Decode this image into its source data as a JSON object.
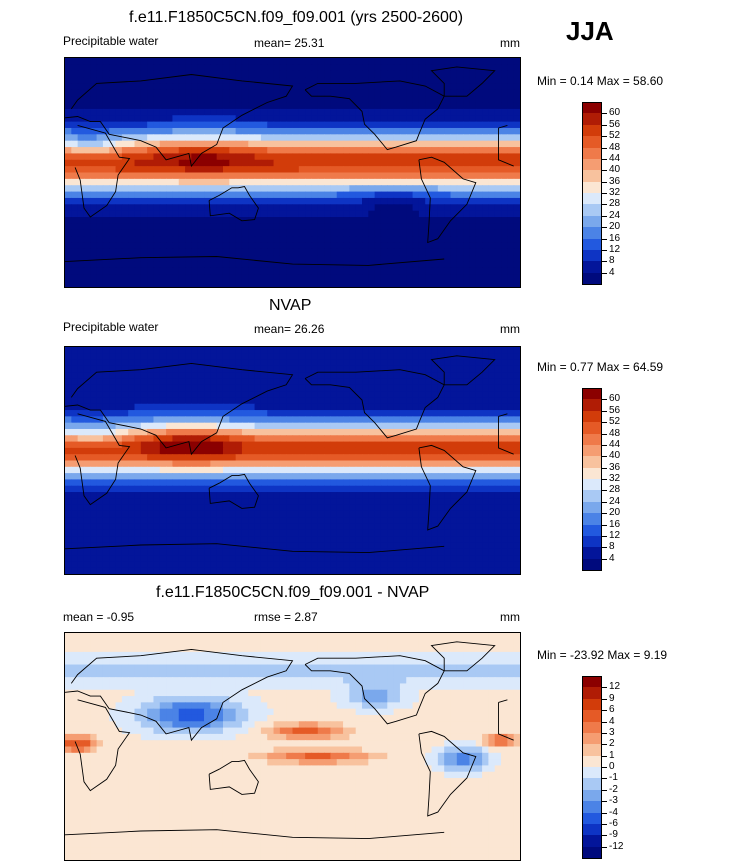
{
  "season": "JJA",
  "panels": [
    {
      "title": "f.e11.F1850C5CN.f09_f09.001 (yrs 2500-2600)",
      "left_label": "Precipitable water",
      "center_label": "mean=  25.31",
      "right_label": "mm",
      "minmax": "Min =   0.14 Max =  58.60",
      "levels": [
        "60",
        "56",
        "52",
        "48",
        "44",
        "40",
        "36",
        "32",
        "28",
        "24",
        "20",
        "16",
        "12",
        "8",
        "4"
      ],
      "colors": [
        "#8b0000",
        "#b01c05",
        "#d23c0a",
        "#e55a26",
        "#ef7a4a",
        "#f59d72",
        "#f8c29e",
        "#fbe6d3",
        "#dbe9fb",
        "#a9c9f4",
        "#7aa8ec",
        "#4b83e6",
        "#2259df",
        "#0e34c4",
        "#03159a",
        "#000a7d"
      ],
      "field": "model"
    },
    {
      "title": "NVAP",
      "left_label": "Precipitable water",
      "center_label": "mean=  26.26",
      "right_label": "mm",
      "minmax": "Min =   0.77 Max =  64.59",
      "levels": [
        "60",
        "56",
        "52",
        "48",
        "44",
        "40",
        "36",
        "32",
        "28",
        "24",
        "20",
        "16",
        "12",
        "8",
        "4"
      ],
      "colors": [
        "#8b0000",
        "#b01c05",
        "#d23c0a",
        "#e55a26",
        "#ef7a4a",
        "#f59d72",
        "#f8c29e",
        "#fbe6d3",
        "#dbe9fb",
        "#a9c9f4",
        "#7aa8ec",
        "#4b83e6",
        "#2259df",
        "#0e34c4",
        "#03159a",
        "#000a7d"
      ],
      "field": "obs"
    },
    {
      "title": "f.e11.F1850C5CN.f09_f09.001 - NVAP",
      "left_label": "mean =  -0.95",
      "center_label": "rmse =   2.87",
      "right_label": "mm",
      "minmax": "Min = -23.92 Max =   9.19",
      "levels": [
        "12",
        "9",
        "6",
        "4",
        "3",
        "2",
        "1",
        "0",
        "-1",
        "-2",
        "-3",
        "-4",
        "-6",
        "-9",
        "-12"
      ],
      "colors": [
        "#8b0000",
        "#b01c05",
        "#d23c0a",
        "#e55a26",
        "#ef7a4a",
        "#f59d72",
        "#f8c29e",
        "#fbe6d3",
        "#dbe9fb",
        "#a9c9f4",
        "#7aa8ec",
        "#4b83e6",
        "#2259df",
        "#0e34c4",
        "#03159a",
        "#000a7d"
      ],
      "field": "diff"
    }
  ]
}
